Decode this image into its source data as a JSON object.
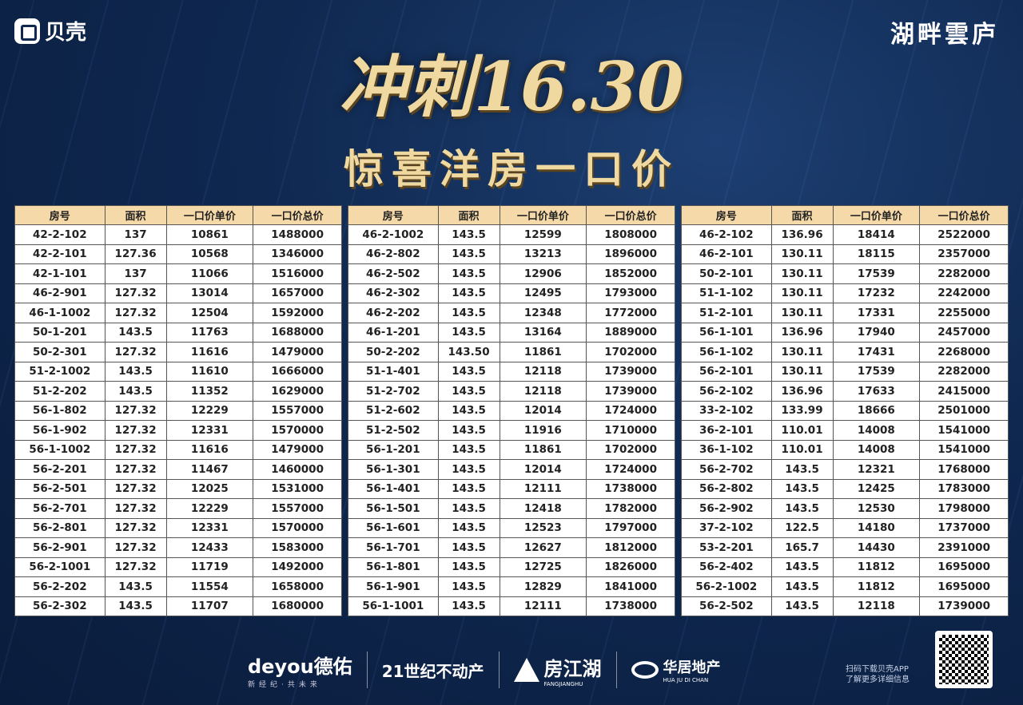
{
  "header": {
    "logo_text": "贝壳",
    "project_name": "湖畔雲庐",
    "title": "冲刺16.30",
    "subtitle": "惊喜洋房一口价"
  },
  "columns": [
    "房号",
    "面积",
    "一口价单价",
    "一口价总价"
  ],
  "tables": [
    [
      [
        "42-2-102",
        "137",
        "10861",
        "1488000"
      ],
      [
        "42-2-101",
        "127.36",
        "10568",
        "1346000"
      ],
      [
        "42-1-101",
        "137",
        "11066",
        "1516000"
      ],
      [
        "46-2-901",
        "127.32",
        "13014",
        "1657000"
      ],
      [
        "46-1-1002",
        "127.32",
        "12504",
        "1592000"
      ],
      [
        "50-1-201",
        "143.5",
        "11763",
        "1688000"
      ],
      [
        "50-2-301",
        "127.32",
        "11616",
        "1479000"
      ],
      [
        "51-2-1002",
        "143.5",
        "11610",
        "1666000"
      ],
      [
        "51-2-202",
        "143.5",
        "11352",
        "1629000"
      ],
      [
        "56-1-802",
        "127.32",
        "12229",
        "1557000"
      ],
      [
        "56-1-902",
        "127.32",
        "12331",
        "1570000"
      ],
      [
        "56-1-1002",
        "127.32",
        "11616",
        "1479000"
      ],
      [
        "56-2-201",
        "127.32",
        "11467",
        "1460000"
      ],
      [
        "56-2-501",
        "127.32",
        "12025",
        "1531000"
      ],
      [
        "56-2-701",
        "127.32",
        "12229",
        "1557000"
      ],
      [
        "56-2-801",
        "127.32",
        "12331",
        "1570000"
      ],
      [
        "56-2-901",
        "127.32",
        "12433",
        "1583000"
      ],
      [
        "56-2-1001",
        "127.32",
        "11719",
        "1492000"
      ],
      [
        "56-2-202",
        "143.5",
        "11554",
        "1658000"
      ],
      [
        "56-2-302",
        "143.5",
        "11707",
        "1680000"
      ]
    ],
    [
      [
        "46-2-1002",
        "143.5",
        "12599",
        "1808000"
      ],
      [
        "46-2-802",
        "143.5",
        "13213",
        "1896000"
      ],
      [
        "46-2-502",
        "143.5",
        "12906",
        "1852000"
      ],
      [
        "46-2-302",
        "143.5",
        "12495",
        "1793000"
      ],
      [
        "46-2-202",
        "143.5",
        "12348",
        "1772000"
      ],
      [
        "46-1-201",
        "143.5",
        "13164",
        "1889000"
      ],
      [
        "50-2-202",
        "143.50",
        "11861",
        "1702000"
      ],
      [
        "51-1-401",
        "143.5",
        "12118",
        "1739000"
      ],
      [
        "51-2-702",
        "143.5",
        "12118",
        "1739000"
      ],
      [
        "51-2-602",
        "143.5",
        "12014",
        "1724000"
      ],
      [
        "51-2-502",
        "143.5",
        "11916",
        "1710000"
      ],
      [
        "56-1-201",
        "143.5",
        "11861",
        "1702000"
      ],
      [
        "56-1-301",
        "143.5",
        "12014",
        "1724000"
      ],
      [
        "56-1-401",
        "143.5",
        "12111",
        "1738000"
      ],
      [
        "56-1-501",
        "143.5",
        "12418",
        "1782000"
      ],
      [
        "56-1-601",
        "143.5",
        "12523",
        "1797000"
      ],
      [
        "56-1-701",
        "143.5",
        "12627",
        "1812000"
      ],
      [
        "56-1-801",
        "143.5",
        "12725",
        "1826000"
      ],
      [
        "56-1-901",
        "143.5",
        "12829",
        "1841000"
      ],
      [
        "56-1-1001",
        "143.5",
        "12111",
        "1738000"
      ]
    ],
    [
      [
        "46-2-102",
        "136.96",
        "18414",
        "2522000"
      ],
      [
        "46-2-101",
        "130.11",
        "18115",
        "2357000"
      ],
      [
        "50-2-101",
        "130.11",
        "17539",
        "2282000"
      ],
      [
        "51-1-102",
        "130.11",
        "17232",
        "2242000"
      ],
      [
        "51-2-101",
        "130.11",
        "17331",
        "2255000"
      ],
      [
        "56-1-101",
        "136.96",
        "17940",
        "2457000"
      ],
      [
        "56-1-102",
        "130.11",
        "17431",
        "2268000"
      ],
      [
        "56-2-101",
        "130.11",
        "17539",
        "2282000"
      ],
      [
        "56-2-102",
        "136.96",
        "17633",
        "2415000"
      ],
      [
        "33-2-102",
        "133.99",
        "18666",
        "2501000"
      ],
      [
        "36-2-101",
        "110.01",
        "14008",
        "1541000"
      ],
      [
        "36-1-102",
        "110.01",
        "14008",
        "1541000"
      ],
      [
        "56-2-702",
        "143.5",
        "12321",
        "1768000"
      ],
      [
        "56-2-802",
        "143.5",
        "12425",
        "1783000"
      ],
      [
        "56-2-902",
        "143.5",
        "12530",
        "1798000"
      ],
      [
        "37-2-102",
        "122.5",
        "14180",
        "1737000"
      ],
      [
        "53-2-201",
        "165.7",
        "14430",
        "2391000"
      ],
      [
        "56-2-402",
        "143.5",
        "11812",
        "1695000"
      ],
      [
        "56-2-1002",
        "143.5",
        "11812",
        "1695000"
      ],
      [
        "56-2-502",
        "143.5",
        "12118",
        "1739000"
      ]
    ]
  ],
  "footer": {
    "deyou": "deyou德佑",
    "deyou_slogan": "新经纪·共未来",
    "c21": "21世纪不动产",
    "fjh": "房江湖",
    "fjh_pinyin": "FANGJIANGHU",
    "hj": "华居地产",
    "hj_pinyin": "HUA JU DI CHAN",
    "qr_line1": "扫码下载贝壳APP",
    "qr_line2": "了解更多详细信息"
  },
  "colors": {
    "header_bg": "#f6d9a8",
    "title_gold": "#f0d9a0",
    "background": "#0f2850"
  }
}
